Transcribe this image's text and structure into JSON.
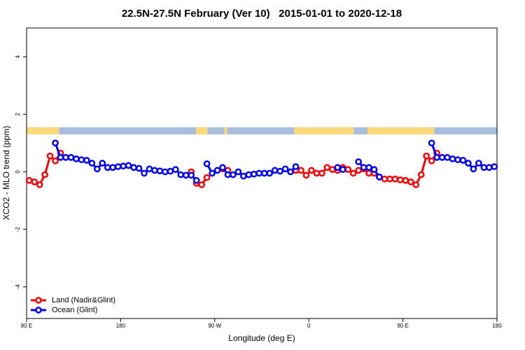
{
  "chart_data": {
    "type": "line",
    "title": "22.5N-27.5N February (Ver 10)   2015-01-01 to 2020-12-18",
    "x_label": "Longitude (deg E)",
    "y_label": "XCO2 - MLO trend (ppm)",
    "xlim": [
      90,
      540
    ],
    "ylim": [
      -5.1,
      5.0
    ],
    "xticks": [
      {
        "value": 90,
        "label": "90 E"
      },
      180,
      {
        "value": 270,
        "label": "90 W"
      },
      {
        "value": 360,
        "label": "0"
      },
      {
        "value": 450,
        "label": "90 E"
      },
      {
        "value": 540,
        "label": "180"
      }
    ],
    "yticks": [
      -4,
      -2,
      0,
      2,
      4
    ],
    "legend": "bottom-left",
    "land_mask": {
      "ranges": [
        [
          90,
          121
        ],
        [
          252,
          263
        ],
        [
          279,
          282
        ],
        [
          346,
          403
        ],
        [
          416,
          480
        ]
      ],
      "ylim": [
        1.3,
        1.55
      ],
      "land_color": "#fcd97a",
      "ocean_color": "#a7bfdd"
    },
    "x": [
      92.5,
      97.5,
      102.5,
      107.5,
      112.5,
      117.5,
      122.5,
      127.5,
      132.5,
      137.5,
      142.5,
      147.5,
      152.5,
      157.5,
      162.5,
      167.5,
      172.5,
      177.5,
      182.5,
      187.5,
      192.5,
      197.5,
      202.5,
      207.5,
      212.5,
      217.5,
      222.5,
      227.5,
      232.5,
      237.5,
      242.5,
      247.5,
      252.5,
      257.5,
      262.5,
      267.5,
      272.5,
      277.5,
      282.5,
      287.5,
      292.5,
      297.5,
      302.5,
      307.5,
      312.5,
      317.5,
      322.5,
      327.5,
      332.5,
      337.5,
      342.5,
      347.5,
      352.5,
      357.5,
      362.5,
      367.5,
      372.5,
      377.5,
      382.5,
      387.5,
      392.5,
      397.5,
      402.5,
      407.5,
      412.5,
      417.5,
      422.5,
      427.5,
      432.5,
      437.5,
      442.5,
      447.5,
      452.5,
      457.5,
      462.5,
      467.5,
      472.5,
      477.5,
      482.5,
      487.5,
      492.5,
      497.5,
      502.5,
      507.5,
      512.5,
      517.5,
      522.5,
      527.5,
      532.5,
      537.5
    ],
    "series": [
      {
        "name": "Land (Nadir&Glint)",
        "color": "#ff0000",
        "values": [
          -0.3,
          -0.35,
          -0.45,
          -0.1,
          0.55,
          0.38,
          0.65,
          null,
          null,
          null,
          null,
          null,
          null,
          null,
          null,
          null,
          null,
          null,
          null,
          null,
          null,
          null,
          null,
          null,
          null,
          null,
          null,
          null,
          null,
          null,
          null,
          0.0,
          -0.4,
          -0.45,
          -0.2,
          null,
          null,
          0.1,
          0.05,
          null,
          null,
          null,
          null,
          null,
          null,
          null,
          null,
          null,
          null,
          null,
          null,
          0.05,
          0.05,
          -0.12,
          0.05,
          -0.05,
          -0.05,
          0.15,
          0.08,
          0.05,
          0.15,
          0.08,
          -0.05,
          0.05,
          0.1,
          -0.05,
          -0.05,
          -0.18,
          -0.25,
          -0.25,
          -0.25,
          -0.28,
          -0.3,
          -0.35,
          -0.45,
          -0.1,
          0.55,
          0.38,
          0.65,
          null,
          null,
          null,
          null,
          null,
          null,
          null,
          null,
          null,
          null,
          null
        ]
      },
      {
        "name": "Ocean (Glint)",
        "color": "#0000ff",
        "values": [
          null,
          null,
          null,
          null,
          null,
          1.0,
          0.5,
          0.5,
          0.5,
          0.45,
          0.42,
          0.4,
          0.3,
          0.1,
          0.3,
          0.15,
          0.15,
          0.18,
          0.2,
          0.22,
          0.15,
          0.12,
          -0.05,
          0.1,
          0.05,
          0.03,
          0.0,
          0.02,
          0.08,
          -0.1,
          -0.12,
          -0.12,
          -0.3,
          null,
          0.28,
          -0.05,
          0.05,
          0.15,
          -0.1,
          -0.1,
          0.0,
          -0.15,
          -0.1,
          -0.08,
          -0.05,
          -0.05,
          -0.05,
          0.05,
          0.02,
          0.1,
          0.0,
          0.18,
          null,
          null,
          null,
          null,
          null,
          null,
          null,
          0.15,
          0.08,
          null,
          null,
          0.35,
          0.15,
          0.15,
          0.08,
          -0.18,
          null,
          null,
          null,
          null,
          null,
          null,
          null,
          null,
          null,
          1.0,
          0.5,
          0.5,
          0.5,
          0.45,
          0.42,
          0.4,
          0.3,
          0.1,
          0.3,
          0.15,
          0.15,
          0.18
        ]
      }
    ]
  }
}
